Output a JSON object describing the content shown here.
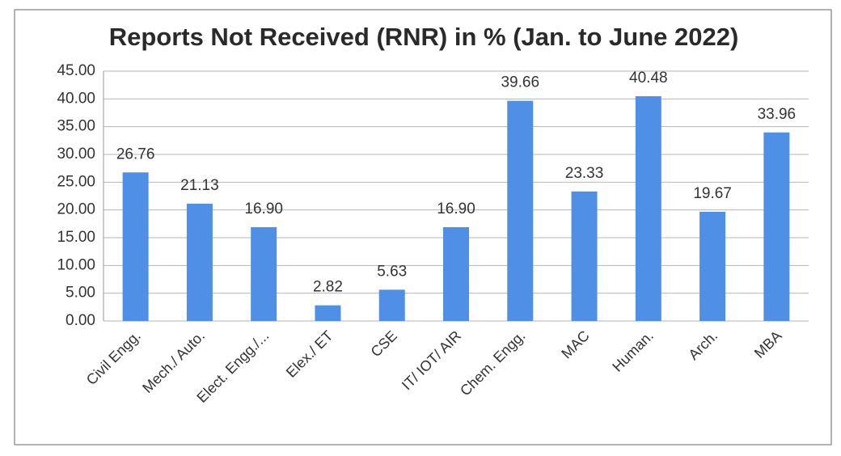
{
  "chart_data": {
    "type": "bar",
    "title": "Reports Not Received (RNR) in % (Jan. to June 2022)",
    "categories": [
      "Civil Engg.",
      "Mech./ Auto.",
      "Elect. Engg./...",
      "Elex./ ET",
      "CSE",
      "IT/ IOT/ AIR",
      "Chem. Engg.",
      "MAC",
      "Human.",
      "Arch.",
      "MBA"
    ],
    "values": [
      26.76,
      21.13,
      16.9,
      2.82,
      5.63,
      16.9,
      39.66,
      23.33,
      40.48,
      19.67,
      33.96
    ],
    "value_labels": [
      "26.76",
      "21.13",
      "16.90",
      "2.82",
      "5.63",
      "16.90",
      "39.66",
      "23.33",
      "40.48",
      "19.67",
      "33.96"
    ],
    "color": "#4f8fe6",
    "ylim": [
      0,
      45
    ],
    "yticks": [
      {
        "value": 0,
        "label": "0.00"
      },
      {
        "value": 5,
        "label": "5.00"
      },
      {
        "value": 10,
        "label": "10.00"
      },
      {
        "value": 15,
        "label": "15.00"
      },
      {
        "value": 20,
        "label": "20.00"
      },
      {
        "value": 25,
        "label": "25.00"
      },
      {
        "value": 30,
        "label": "30.00"
      },
      {
        "value": 35,
        "label": "35.00"
      },
      {
        "value": 40,
        "label": "40.00"
      },
      {
        "value": 45,
        "label": "45.00"
      }
    ],
    "grid": true
  }
}
